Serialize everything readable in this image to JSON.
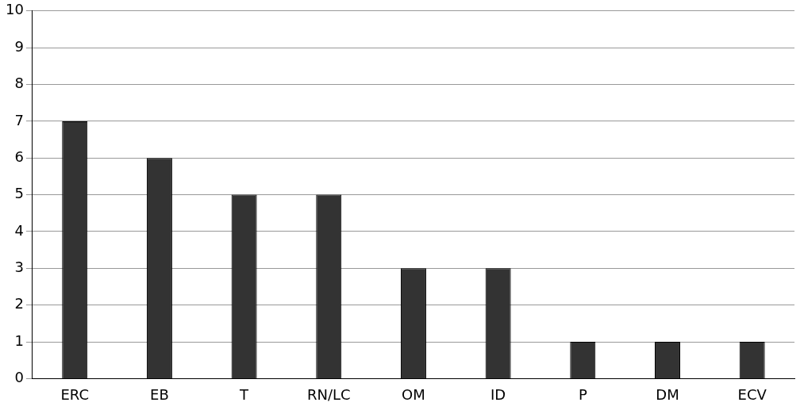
{
  "chart_data": {
    "type": "bar",
    "categories": [
      "ERC",
      "EB",
      "T",
      "RN/LC",
      "OM",
      "ID",
      "P",
      "DM",
      "ECV"
    ],
    "values": [
      7,
      6,
      5,
      5,
      3,
      3,
      1,
      1,
      1
    ],
    "color": "#333333",
    "ylim": [
      0,
      10
    ],
    "yticks": [
      0,
      1,
      2,
      3,
      4,
      5,
      6,
      7,
      8,
      9,
      10
    ],
    "grid": "y",
    "legend": false
  }
}
